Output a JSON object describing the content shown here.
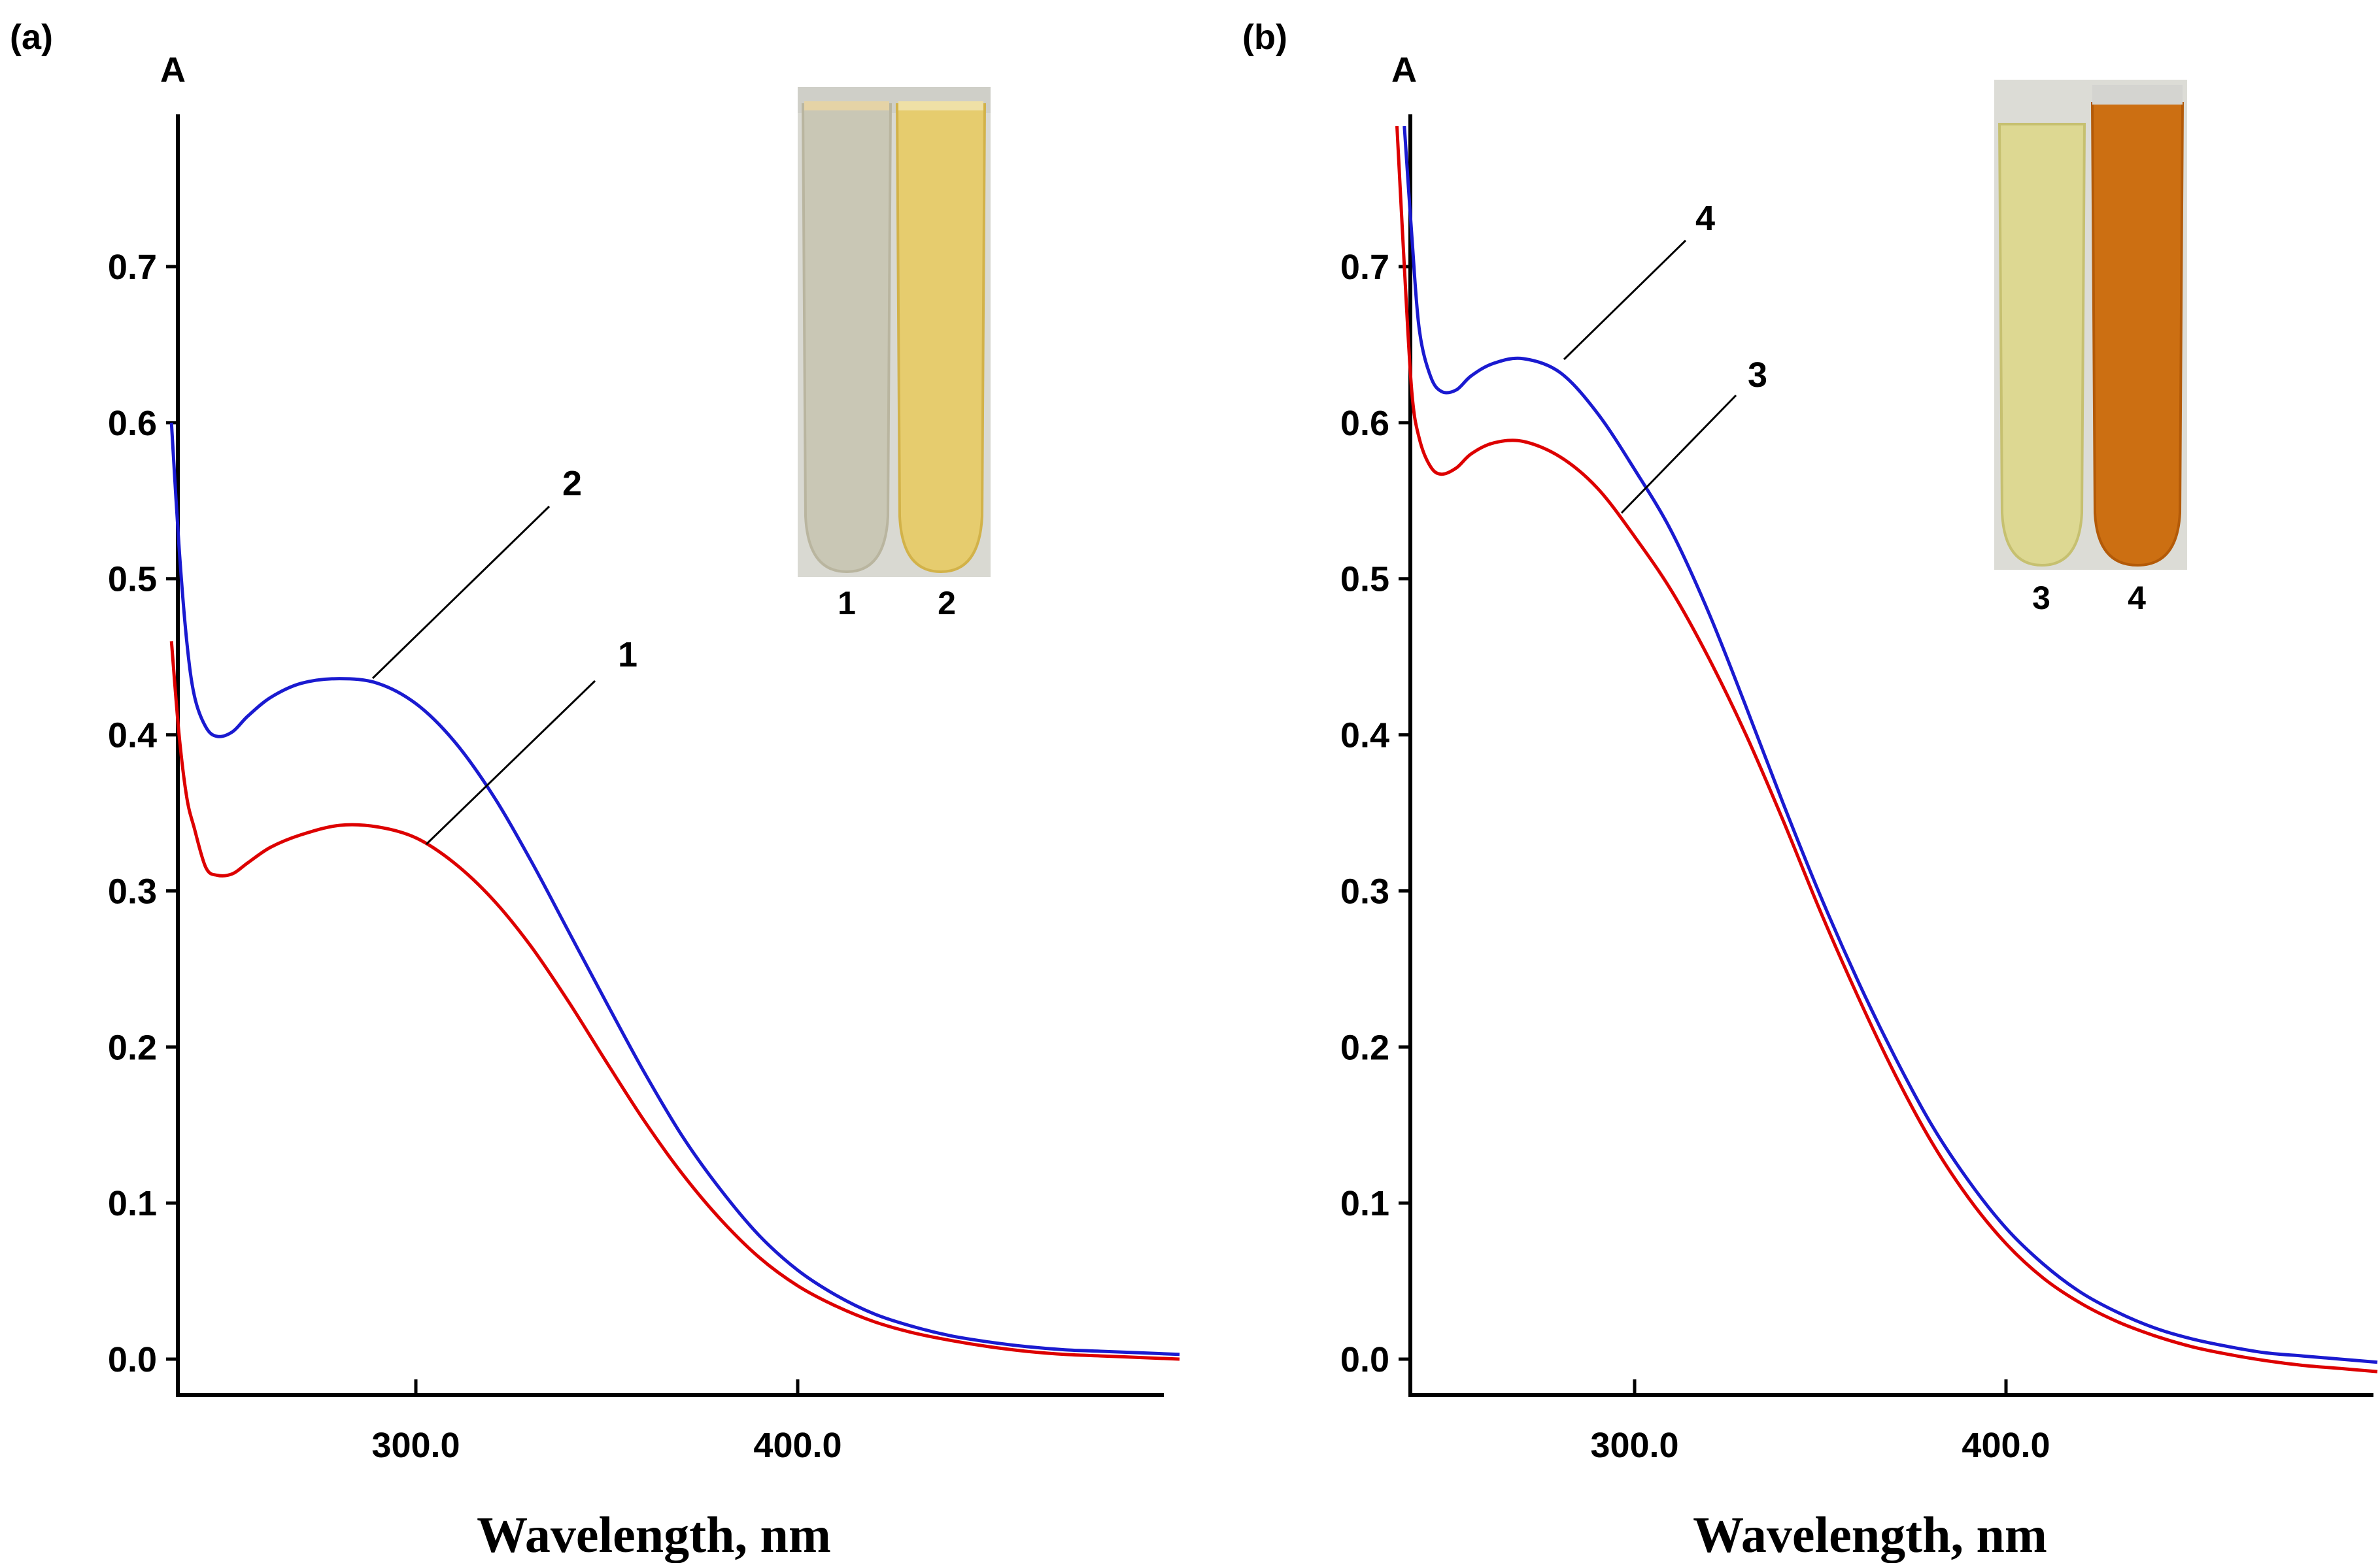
{
  "chart_data": [
    {
      "panel_label": "(a)",
      "type": "line",
      "ylabel": "A",
      "xlabel": "Wavelength, nm",
      "xlim": [
        236,
        500
      ],
      "ylim": [
        -0.02,
        0.8
      ],
      "yticks": [
        "0.0",
        "0.1",
        "0.2",
        "0.3",
        "0.4",
        "0.5",
        "0.6",
        "0.7"
      ],
      "xticks": [
        "300.0",
        "400.0"
      ],
      "grid": false,
      "series": [
        {
          "name": "1",
          "color": "#dd0000",
          "x": [
            236,
            238,
            240,
            242,
            245,
            248,
            252,
            256,
            262,
            270,
            280,
            290,
            300,
            310,
            320,
            330,
            340,
            350,
            360,
            370,
            380,
            390,
            400,
            410,
            420,
            430,
            440,
            450,
            460,
            470,
            480,
            490,
            500
          ],
          "y": [
            0.46,
            0.4,
            0.36,
            0.34,
            0.315,
            0.31,
            0.311,
            0.318,
            0.328,
            0.336,
            0.342,
            0.341,
            0.334,
            0.318,
            0.295,
            0.265,
            0.229,
            0.19,
            0.152,
            0.118,
            0.089,
            0.065,
            0.047,
            0.034,
            0.024,
            0.017,
            0.012,
            0.008,
            0.005,
            0.003,
            0.002,
            0.001,
            0.0
          ]
        },
        {
          "name": "2",
          "color": "#1a1ad0",
          "x": [
            236,
            238,
            240,
            242,
            245,
            248,
            252,
            256,
            262,
            270,
            280,
            290,
            300,
            310,
            320,
            330,
            340,
            350,
            360,
            370,
            380,
            390,
            400,
            410,
            420,
            430,
            440,
            450,
            460,
            470,
            480,
            490,
            500
          ],
          "y": [
            0.6,
            0.52,
            0.46,
            0.425,
            0.405,
            0.399,
            0.402,
            0.412,
            0.424,
            0.433,
            0.436,
            0.433,
            0.42,
            0.396,
            0.362,
            0.32,
            0.274,
            0.228,
            0.183,
            0.142,
            0.108,
            0.079,
            0.057,
            0.041,
            0.029,
            0.021,
            0.015,
            0.011,
            0.008,
            0.006,
            0.005,
            0.004,
            0.003
          ]
        }
      ],
      "curve_labels": [
        "1",
        "2"
      ],
      "inset": {
        "tubes": [
          {
            "label": "1",
            "color": "#c9c7b5",
            "edge": "#b9b59f"
          },
          {
            "label": "2",
            "color": "#e6cc6e",
            "edge": "#d2b249"
          }
        ]
      }
    },
    {
      "panel_label": "(b)",
      "type": "line",
      "ylabel": "A",
      "xlabel": "Wavelength, nm",
      "xlim": [
        236,
        500
      ],
      "ylim": [
        -0.02,
        0.8
      ],
      "yticks": [
        "0.0",
        "0.1",
        "0.2",
        "0.3",
        "0.4",
        "0.5",
        "0.6",
        "0.7"
      ],
      "xticks": [
        "300.0",
        "400.0"
      ],
      "grid": false,
      "series": [
        {
          "name": "3",
          "color": "#dd0000",
          "x": [
            236,
            238,
            240,
            242,
            245,
            248,
            252,
            256,
            262,
            270,
            280,
            290,
            300,
            310,
            320,
            330,
            340,
            350,
            360,
            370,
            380,
            390,
            400,
            410,
            420,
            430,
            440,
            450,
            460,
            470,
            480,
            490,
            500
          ],
          "y": [
            0.79,
            0.7,
            0.62,
            0.59,
            0.572,
            0.567,
            0.571,
            0.58,
            0.587,
            0.588,
            0.578,
            0.558,
            0.527,
            0.492,
            0.449,
            0.4,
            0.345,
            0.287,
            0.233,
            0.183,
            0.139,
            0.103,
            0.074,
            0.052,
            0.036,
            0.024,
            0.015,
            0.008,
            0.003,
            -0.001,
            -0.004,
            -0.006,
            -0.008
          ]
        },
        {
          "name": "4",
          "color": "#1a1ad0",
          "x": [
            238,
            240,
            242,
            245,
            248,
            252,
            256,
            262,
            270,
            280,
            290,
            300,
            310,
            320,
            330,
            340,
            350,
            360,
            370,
            380,
            390,
            400,
            410,
            420,
            430,
            440,
            450,
            460,
            470,
            480,
            490,
            500
          ],
          "y": [
            0.79,
            0.72,
            0.66,
            0.63,
            0.62,
            0.621,
            0.63,
            0.638,
            0.641,
            0.632,
            0.606,
            0.57,
            0.53,
            0.478,
            0.418,
            0.356,
            0.297,
            0.243,
            0.194,
            0.15,
            0.114,
            0.084,
            0.061,
            0.043,
            0.03,
            0.02,
            0.013,
            0.008,
            0.004,
            0.002,
            0.0,
            -0.002
          ]
        }
      ],
      "curve_labels": [
        "3",
        "4"
      ],
      "inset": {
        "tubes": [
          {
            "label": "3",
            "color": "#ddd892",
            "edge": "#c6c070"
          },
          {
            "label": "4",
            "color": "#cc6f12",
            "edge": "#b35a08"
          }
        ]
      }
    }
  ]
}
